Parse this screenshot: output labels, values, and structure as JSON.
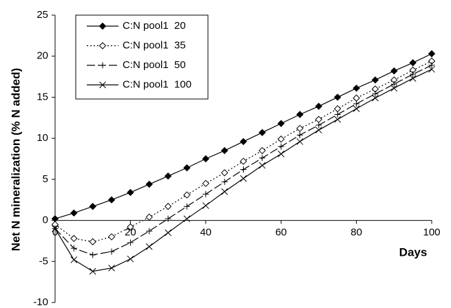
{
  "chart_data": {
    "type": "line",
    "y_label": "Net N mineralization (% N added)",
    "x_label": "Days",
    "x": [
      0,
      5,
      10,
      15,
      20,
      25,
      30,
      35,
      40,
      45,
      50,
      55,
      60,
      65,
      70,
      75,
      80,
      85,
      90,
      95,
      100
    ],
    "series": [
      {
        "name": "C:N pool1  20",
        "color": "#000000",
        "marker": "diamond-filled",
        "dash": "none",
        "values": [
          0.2,
          0.9,
          1.7,
          2.5,
          3.4,
          4.4,
          5.4,
          6.4,
          7.5,
          8.5,
          9.6,
          10.7,
          11.8,
          12.9,
          13.9,
          15.0,
          16.1,
          17.1,
          18.2,
          19.2,
          20.3
        ]
      },
      {
        "name": "C:N pool1  35",
        "color": "#000000",
        "marker": "diamond-open",
        "dash": "2 3",
        "values": [
          -0.5,
          -2.2,
          -2.6,
          -2.0,
          -0.8,
          0.4,
          1.7,
          3.1,
          4.5,
          5.8,
          7.2,
          8.5,
          9.9,
          11.2,
          12.3,
          13.6,
          14.9,
          16.0,
          17.1,
          18.3,
          19.4
        ]
      },
      {
        "name": "C:N pool1  50",
        "color": "#000000",
        "marker": "plus",
        "dash": "12 4",
        "values": [
          -1.0,
          -3.4,
          -4.2,
          -3.8,
          -2.7,
          -1.3,
          0.2,
          1.7,
          3.2,
          4.7,
          6.2,
          7.6,
          9.0,
          10.4,
          11.6,
          12.9,
          14.2,
          15.4,
          16.6,
          17.8,
          18.9
        ]
      },
      {
        "name": "C:N pool1  100",
        "color": "#000000",
        "marker": "x",
        "dash": "none",
        "values": [
          -1.0,
          -4.8,
          -6.2,
          -5.8,
          -4.7,
          -3.2,
          -1.5,
          0.2,
          1.8,
          3.5,
          5.1,
          6.7,
          8.1,
          9.6,
          11.0,
          12.3,
          13.6,
          14.9,
          16.1,
          17.3,
          18.4
        ]
      }
    ],
    "xlim": [
      0,
      100
    ],
    "xticks": [
      0,
      20,
      40,
      60,
      80,
      100
    ],
    "ylim": [
      -10,
      25
    ],
    "yticks": [
      -10,
      -5,
      0,
      5,
      10,
      15,
      20,
      25
    ],
    "legend": "upper-left"
  }
}
